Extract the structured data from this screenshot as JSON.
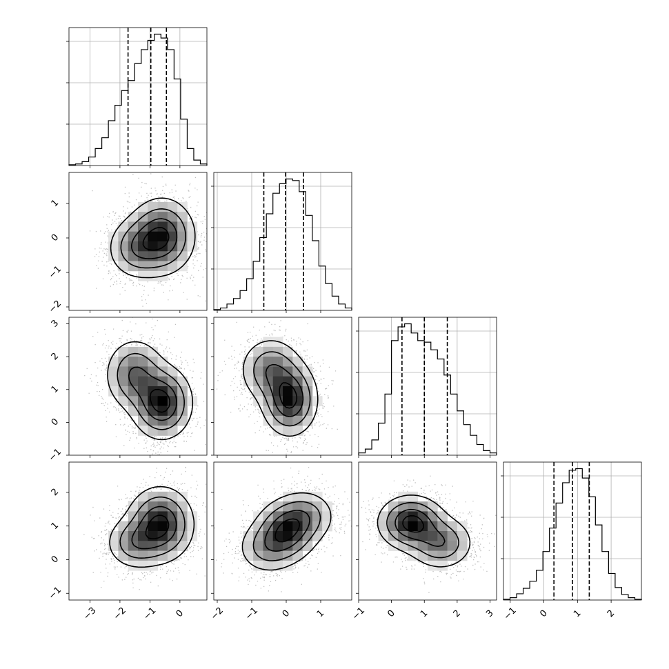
{
  "chart_data": {
    "type": "corner",
    "title": "",
    "parameters": [
      {
        "range": [
          -3.7,
          0.9
        ],
        "ticks": [
          -3,
          -2,
          -1,
          0
        ],
        "tick_labels": [
          "−3",
          "−2",
          "−1",
          "0"
        ],
        "quantiles": [
          -1.73,
          -0.97,
          -0.45
        ],
        "hist": [
          1,
          2,
          5,
          11,
          22,
          36,
          58,
          78,
          97,
          110,
          132,
          150,
          162,
          170,
          165,
          150,
          112,
          60,
          22,
          7,
          2
        ]
      },
      {
        "range": [
          -2.1,
          1.9
        ],
        "ticks": [
          -2,
          -1,
          0,
          1
        ],
        "tick_labels": [
          "−2",
          "−1",
          "0",
          "1"
        ],
        "quantiles": [
          -0.65,
          -0.02,
          0.5
        ],
        "hist": [
          1,
          3,
          8,
          15,
          25,
          40,
          62,
          92,
          122,
          148,
          160,
          166,
          164,
          150,
          120,
          88,
          56,
          34,
          18,
          8,
          3
        ]
      },
      {
        "range": [
          -1.0,
          3.2
        ],
        "ticks": [
          -1,
          0,
          1,
          2,
          3
        ],
        "tick_labels": [
          "−1",
          "0",
          "1",
          "2",
          "3"
        ],
        "quantiles": [
          0.32,
          1.0,
          1.7
        ],
        "hist": [
          3,
          8,
          20,
          42,
          80,
          150,
          168,
          172,
          160,
          150,
          148,
          138,
          126,
          105,
          80,
          58,
          40,
          26,
          14,
          6,
          3
        ]
      },
      {
        "range": [
          -1.2,
          2.9
        ],
        "ticks": [
          -1,
          0,
          1,
          2
        ],
        "tick_labels": [
          "−1",
          "0",
          "1",
          "2"
        ],
        "quantiles": [
          0.3,
          0.85,
          1.35
        ],
        "hist": [
          1,
          3,
          8,
          15,
          24,
          38,
          62,
          92,
          124,
          150,
          166,
          168,
          156,
          132,
          96,
          62,
          34,
          16,
          7,
          3,
          1
        ]
      }
    ],
    "pairs": [
      {
        "x": 0,
        "y": 1,
        "peaks": [
          {
            "mx": -0.6,
            "my": 0.05,
            "sx": 0.55,
            "sy": 0.55,
            "w": 1.0
          },
          {
            "mx": -1.45,
            "my": -0.3,
            "sx": 0.5,
            "sy": 0.45,
            "w": 0.55
          }
        ]
      },
      {
        "x": 0,
        "y": 2,
        "peaks": [
          {
            "mx": -0.6,
            "my": 0.6,
            "sx": 0.5,
            "sy": 0.55,
            "w": 1.0
          },
          {
            "mx": -1.5,
            "my": 1.45,
            "sx": 0.5,
            "sy": 0.55,
            "w": 0.65
          }
        ]
      },
      {
        "x": 0,
        "y": 3,
        "peaks": [
          {
            "mx": -0.65,
            "my": 1.05,
            "sx": 0.55,
            "sy": 0.55,
            "w": 1.0
          },
          {
            "mx": -1.5,
            "my": 0.5,
            "sx": 0.5,
            "sy": 0.4,
            "w": 0.5
          }
        ]
      },
      {
        "x": 1,
        "y": 2,
        "peaks": [
          {
            "mx": 0.1,
            "my": 0.7,
            "sx": 0.4,
            "sy": 0.55,
            "w": 1.0
          },
          {
            "mx": -0.45,
            "my": 1.6,
            "sx": 0.45,
            "sy": 0.5,
            "w": 0.6
          }
        ]
      },
      {
        "x": 1,
        "y": 3,
        "peaks": [
          {
            "mx": 0.0,
            "my": 0.85,
            "sx": 0.45,
            "sy": 0.45,
            "w": 1.0
          },
          {
            "mx": 0.55,
            "my": 1.3,
            "sx": 0.45,
            "sy": 0.4,
            "w": 0.55
          },
          {
            "mx": -0.55,
            "my": 0.35,
            "sx": 0.45,
            "sy": 0.4,
            "w": 0.5
          }
        ]
      },
      {
        "x": 2,
        "y": 3,
        "peaks": [
          {
            "mx": 0.6,
            "my": 1.1,
            "sx": 0.5,
            "sy": 0.4,
            "w": 1.0
          },
          {
            "mx": 1.5,
            "my": 0.5,
            "sx": 0.5,
            "sy": 0.4,
            "w": 0.6
          }
        ]
      }
    ],
    "contour_levels": [
      0.12,
      0.32,
      0.6,
      0.85
    ],
    "grid": true,
    "quantile_style": "dashed"
  }
}
